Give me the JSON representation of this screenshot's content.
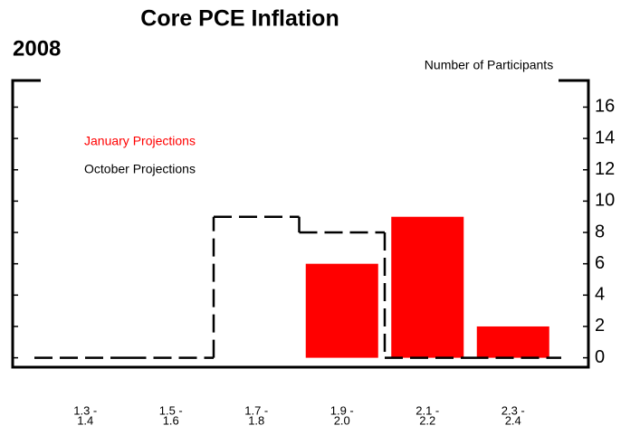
{
  "chart_data": {
    "type": "bar",
    "title": "Core PCE Inflation",
    "subtitle": "2008",
    "y_axis_label": "Number of Participants",
    "categories": [
      [
        "1.3 -",
        "1.4"
      ],
      [
        "1.5 -",
        "1.6"
      ],
      [
        "1.7 -",
        "1.8"
      ],
      [
        "1.9 -",
        "2.0"
      ],
      [
        "2.1 -",
        "2.2"
      ],
      [
        "2.3 -",
        "2.4"
      ]
    ],
    "series": [
      {
        "name": "January Projections",
        "color": "#ff0000",
        "values": [
          0,
          0,
          0,
          6,
          9,
          2
        ]
      },
      {
        "name": "October Projections",
        "color": "#000000",
        "values": [
          0,
          0,
          9,
          8,
          0,
          0
        ]
      }
    ],
    "ylim": [
      -0.6,
      17.7
    ],
    "yticks": [
      0,
      2,
      4,
      6,
      8,
      10,
      12,
      14,
      16
    ]
  }
}
